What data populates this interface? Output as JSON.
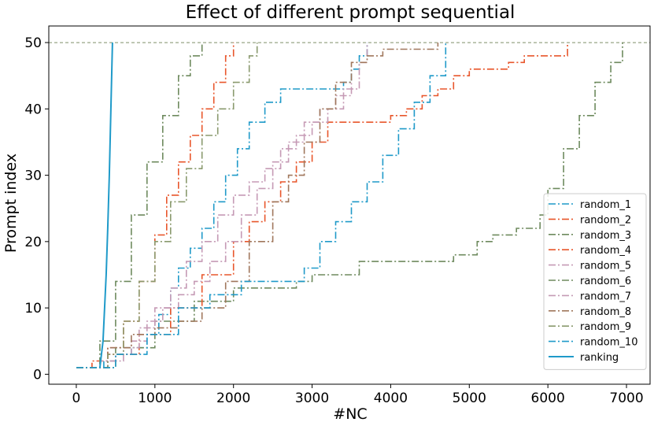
{
  "chart_data": {
    "type": "line",
    "title": "Effect of different prompt sequential",
    "xlabel": "#NC",
    "ylabel": "Prompt index",
    "xlim": [
      -350,
      7300
    ],
    "ylim": [
      -1.5,
      52.5
    ],
    "xticks": [
      0,
      1000,
      2000,
      3000,
      4000,
      5000,
      6000,
      7000
    ],
    "yticks": [
      0,
      10,
      20,
      30,
      40,
      50
    ],
    "xtick_labels": [
      "0",
      "1000",
      "2000",
      "3000",
      "4000",
      "5000",
      "6000",
      "7000"
    ],
    "ytick_labels": [
      "0",
      "10",
      "20",
      "30",
      "40",
      "50"
    ],
    "reference_line": {
      "y": 50,
      "style": "dashed",
      "color": "#7f8f6a"
    },
    "legend_position": "lower right",
    "series": [
      {
        "name": "random_1",
        "color": "#1f9ac9",
        "style": "dashdot",
        "x": [
          0,
          250,
          350,
          500,
          700,
          900,
          1050,
          1200,
          1300,
          1450,
          1600,
          1750,
          1900,
          2050,
          2200,
          2400,
          2600,
          2700,
          2800,
          3000,
          3200,
          3400,
          3500,
          3600,
          3700
        ],
        "y": [
          1,
          1,
          2,
          3,
          4,
          6,
          9,
          13,
          16,
          19,
          22,
          26,
          30,
          34,
          38,
          41,
          43,
          43,
          43,
          43,
          43,
          44,
          46,
          48,
          50
        ]
      },
      {
        "name": "random_2",
        "color": "#e8562b",
        "style": "dashdot",
        "x": [
          0,
          200,
          400,
          600,
          800,
          1000,
          1150,
          1300,
          1450,
          1600,
          1750,
          1900,
          2000
        ],
        "y": [
          1,
          2,
          4,
          8,
          14,
          21,
          27,
          32,
          36,
          40,
          44,
          48,
          50
        ]
      },
      {
        "name": "random_3",
        "color": "#6e8a5e",
        "style": "dashdot",
        "x": [
          0,
          500,
          1000,
          1500,
          2000,
          2500,
          2800,
          3000,
          3300,
          3600,
          4000,
          4400,
          4800,
          5100,
          5300,
          5600,
          5850,
          5900,
          6000,
          6200,
          6400,
          6600,
          6800,
          6950
        ],
        "y": [
          1,
          4,
          8,
          11,
          13,
          13,
          14,
          15,
          15,
          17,
          17,
          17,
          18,
          20,
          21,
          22,
          22,
          24,
          28,
          34,
          39,
          44,
          47,
          50
        ]
      },
      {
        "name": "random_4",
        "color": "#e8562b",
        "style": "dashdot",
        "x": [
          0,
          400,
          800,
          1200,
          1600,
          2000,
          2200,
          2400,
          2600,
          2800,
          3000,
          3200,
          3400,
          3600,
          3900,
          4000,
          4200,
          4400,
          4600,
          4800,
          5000,
          5200,
          5400,
          5500,
          5700,
          5900,
          6100,
          6250
        ],
        "y": [
          1,
          3,
          6,
          10,
          15,
          20,
          23,
          26,
          29,
          32,
          35,
          38,
          38,
          38,
          38,
          39,
          40,
          42,
          43,
          45,
          46,
          46,
          46,
          47,
          48,
          48,
          48,
          50
        ]
      },
      {
        "name": "random_5",
        "color": "#c59ab5",
        "style": "dashdot",
        "x": [
          0,
          300,
          500,
          700,
          900,
          1100,
          1300,
          1500,
          1700,
          1900,
          2100,
          2300,
          2500,
          2700,
          2900,
          3100,
          3300,
          3500
        ],
        "y": [
          1,
          2,
          3,
          5,
          8,
          10,
          12,
          14,
          17,
          20,
          24,
          28,
          32,
          35,
          38,
          40,
          42,
          44
        ]
      },
      {
        "name": "random_6",
        "color": "#6e8a5e",
        "style": "dashdot",
        "x": [
          0,
          300,
          500,
          700,
          900,
          1100,
          1300,
          1450,
          1600
        ],
        "y": [
          1,
          5,
          14,
          24,
          32,
          39,
          45,
          48,
          50
        ]
      },
      {
        "name": "random_7",
        "color": "#c59ab5",
        "style": "dashdot",
        "x": [
          0,
          400,
          600,
          800,
          1000,
          1200,
          1400,
          1600,
          1800,
          2000,
          2200,
          2400,
          2600,
          2800,
          3000,
          3200,
          3400,
          3600,
          3700
        ],
        "y": [
          1,
          2,
          4,
          7,
          10,
          13,
          17,
          20,
          24,
          27,
          29,
          31,
          34,
          36,
          38,
          40,
          43,
          47,
          50
        ]
      },
      {
        "name": "random_8",
        "color": "#a0775c",
        "style": "dashdot",
        "x": [
          0,
          400,
          700,
          1000,
          1300,
          1600,
          1900,
          2200,
          2500,
          2700,
          2900,
          3100,
          3300,
          3500,
          3700,
          3900,
          4100,
          4300,
          4500,
          4600
        ],
        "y": [
          1,
          4,
          6,
          7,
          8,
          10,
          14,
          20,
          26,
          30,
          35,
          40,
          44,
          47,
          48,
          49,
          49,
          49,
          49,
          50
        ]
      },
      {
        "name": "random_9",
        "color": "#8a9a6e",
        "style": "dashdot",
        "x": [
          0,
          400,
          600,
          800,
          1000,
          1200,
          1400,
          1600,
          1800,
          2000,
          2200,
          2300
        ],
        "y": [
          1,
          3,
          8,
          14,
          20,
          26,
          31,
          36,
          40,
          44,
          48,
          50
        ]
      },
      {
        "name": "random_10",
        "color": "#1f9ac9",
        "style": "dashdot",
        "x": [
          0,
          500,
          900,
          1300,
          1700,
          2100,
          2500,
          2800,
          2900,
          3100,
          3300,
          3500,
          3700,
          3900,
          4100,
          4300,
          4500,
          4700
        ],
        "y": [
          1,
          3,
          6,
          10,
          12,
          14,
          14,
          14,
          16,
          20,
          23,
          26,
          29,
          33,
          37,
          41,
          45,
          50
        ]
      },
      {
        "name": "ranking",
        "color": "#1f9ac9",
        "style": "solid",
        "x": [
          300,
          320,
          340,
          360,
          380,
          400,
          420,
          440,
          460
        ],
        "y": [
          1,
          3,
          5,
          10,
          15,
          22,
          30,
          40,
          50
        ]
      }
    ]
  }
}
